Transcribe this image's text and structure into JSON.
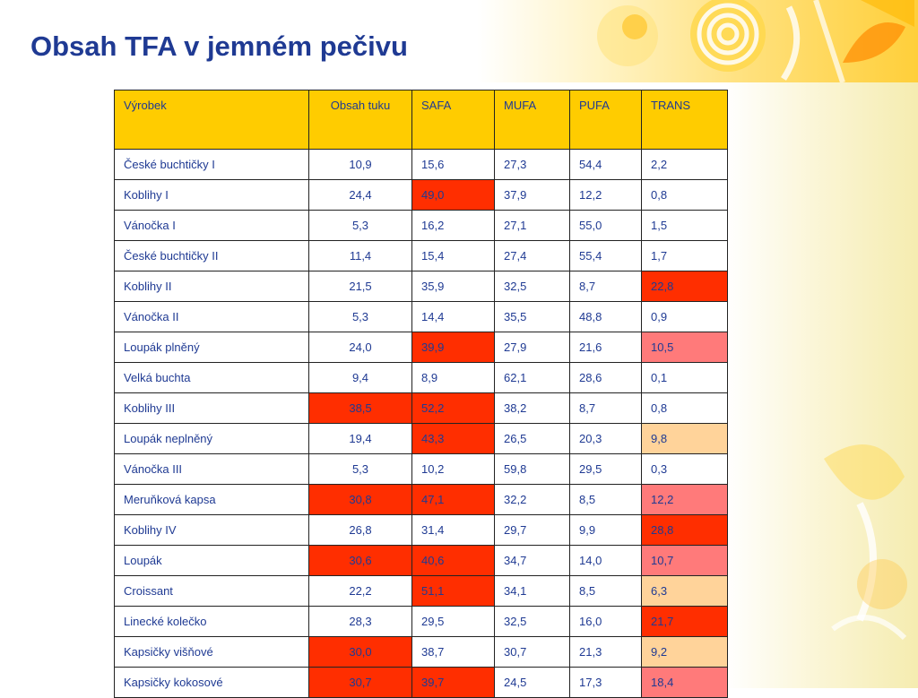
{
  "title": "Obsah TFA v jemném pečivu",
  "colors": {
    "title": "#1f3a93",
    "header_fill": "#ffcc00",
    "cell_text": "#1f3a93",
    "highlight_red": "#ff2e00",
    "highlight_pink": "#ff7a7a",
    "highlight_peach": "#ffd39a"
  },
  "table": {
    "headers": [
      "Výrobek",
      "Obsah tuku",
      "SAFA",
      "MUFA",
      "PUFA",
      "TRANS"
    ],
    "rows": [
      {
        "cells": [
          "České buchtičky I",
          "10,9",
          "15,6",
          "27,3",
          "54,4",
          "2,2"
        ],
        "highlight": [
          "",
          "",
          "",
          "",
          "",
          ""
        ]
      },
      {
        "cells": [
          "Koblihy I",
          "24,4",
          "49,0",
          "37,9",
          "12,2",
          "0,8"
        ],
        "highlight": [
          "",
          "",
          "red",
          "",
          "",
          ""
        ]
      },
      {
        "cells": [
          "Vánočka I",
          "5,3",
          "16,2",
          "27,1",
          "55,0",
          "1,5"
        ],
        "highlight": [
          "",
          "",
          "",
          "",
          "",
          ""
        ]
      },
      {
        "cells": [
          "České buchtičky II",
          "11,4",
          "15,4",
          "27,4",
          "55,4",
          "1,7"
        ],
        "highlight": [
          "",
          "",
          "",
          "",
          "",
          ""
        ]
      },
      {
        "cells": [
          "Koblihy II",
          "21,5",
          "35,9",
          "32,5",
          "8,7",
          "22,8"
        ],
        "highlight": [
          "",
          "",
          "",
          "",
          "",
          "red"
        ]
      },
      {
        "cells": [
          "Vánočka II",
          "5,3",
          "14,4",
          "35,5",
          "48,8",
          "0,9"
        ],
        "highlight": [
          "",
          "",
          "",
          "",
          "",
          ""
        ]
      },
      {
        "cells": [
          "Loupák plněný",
          "24,0",
          "39,9",
          "27,9",
          "21,6",
          "10,5"
        ],
        "highlight": [
          "",
          "",
          "red",
          "",
          "",
          "pink"
        ]
      },
      {
        "cells": [
          "Velká buchta",
          "9,4",
          "8,9",
          "62,1",
          "28,6",
          "0,1"
        ],
        "highlight": [
          "",
          "",
          "",
          "",
          "",
          ""
        ]
      },
      {
        "cells": [
          "Koblihy III",
          "38,5",
          "52,2",
          "38,2",
          "8,7",
          "0,8"
        ],
        "highlight": [
          "",
          "red",
          "red",
          "",
          "",
          ""
        ]
      },
      {
        "cells": [
          "Loupák neplněný",
          "19,4",
          "43,3",
          "26,5",
          "20,3",
          "9,8"
        ],
        "highlight": [
          "",
          "",
          "red",
          "",
          "",
          "peach"
        ]
      },
      {
        "cells": [
          "Vánočka III",
          "5,3",
          "10,2",
          "59,8",
          "29,5",
          "0,3"
        ],
        "highlight": [
          "",
          "",
          "",
          "",
          "",
          ""
        ]
      },
      {
        "cells": [
          "Meruňková kapsa",
          "30,8",
          "47,1",
          "32,2",
          "8,5",
          "12,2"
        ],
        "highlight": [
          "",
          "red",
          "red",
          "",
          "",
          "pink"
        ]
      },
      {
        "cells": [
          "Koblihy IV",
          "26,8",
          "31,4",
          "29,7",
          "9,9",
          "28,8"
        ],
        "highlight": [
          "",
          "",
          "",
          "",
          "",
          "red"
        ]
      },
      {
        "cells": [
          "Loupák",
          "30,6",
          "40,6",
          "34,7",
          "14,0",
          "10,7"
        ],
        "highlight": [
          "",
          "red",
          "red",
          "",
          "",
          "pink"
        ]
      },
      {
        "cells": [
          "Croissant",
          "22,2",
          "51,1",
          "34,1",
          "8,5",
          "6,3"
        ],
        "highlight": [
          "",
          "",
          "red",
          "",
          "",
          "peach"
        ]
      },
      {
        "cells": [
          "Linecké kolečko",
          "28,3",
          "29,5",
          "32,5",
          "16,0",
          "21,7"
        ],
        "highlight": [
          "",
          "",
          "",
          "",
          "",
          "red"
        ]
      },
      {
        "cells": [
          "Kapsičky višňové",
          "30,0",
          "38,7",
          "30,7",
          "21,3",
          "9,2"
        ],
        "highlight": [
          "",
          "red",
          "",
          "",
          "",
          "peach"
        ]
      },
      {
        "cells": [
          "Kapsičky kokosové",
          "30,7",
          "39,7",
          "24,5",
          "17,3",
          "18,4"
        ],
        "highlight": [
          "",
          "red",
          "red",
          "",
          "",
          "pink"
        ]
      }
    ]
  }
}
